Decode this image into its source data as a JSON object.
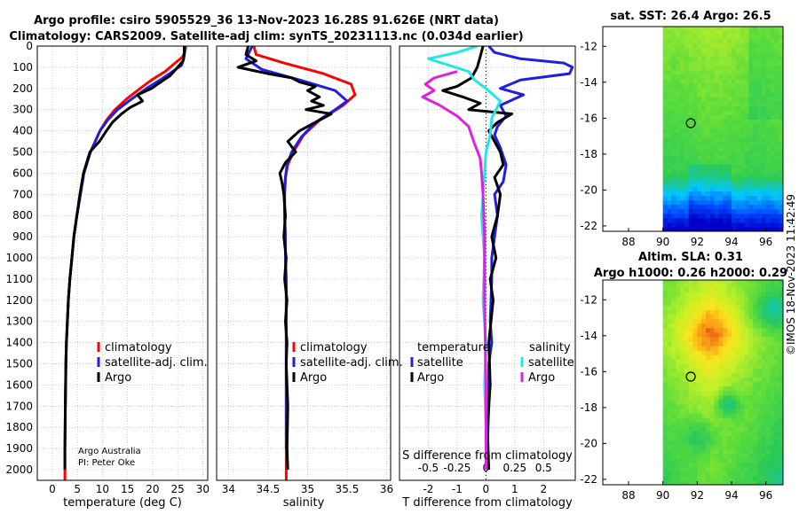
{
  "header": {
    "line1": "Argo profile: csiro 5905529_36 13-Nov-2023 16.28S 91.626E (NRT data)",
    "line2": "Climatology: CARS2009. Satellite-adj clim: synTS_20231113.nc (0.034d earlier)"
  },
  "colors": {
    "clim": "#ff0000",
    "sat": "#1f1fdd",
    "argo": "#000000",
    "sat_s": "#22e6e6",
    "argo_s": "#e020e0",
    "grid": "#b8b8b8"
  },
  "chart_data": [
    {
      "type": "line",
      "id": "temperature",
      "xlabel": "temperature (deg C)",
      "xlim": [
        -3,
        31
      ],
      "xticks": [
        0,
        5,
        10,
        15,
        20,
        25,
        30
      ],
      "xticklabels": [
        "0",
        "5",
        "10",
        "15",
        "20",
        "25",
        "30"
      ],
      "ylim": [
        2050,
        0
      ],
      "yticks": [
        0,
        100,
        200,
        300,
        400,
        500,
        600,
        700,
        800,
        900,
        1000,
        1100,
        1200,
        1300,
        1400,
        1500,
        1600,
        1700,
        1800,
        1900,
        2000
      ],
      "legend": [
        "climatology",
        "satellite-adj. clim.",
        "Argo"
      ],
      "annotation": [
        "Argo Australia",
        "PI: Peter Oke"
      ],
      "series": [
        {
          "name": "climatology",
          "color": "clim",
          "x": [
            26.6,
            26.5,
            26.0,
            24.5,
            22.5,
            19.8,
            17.5,
            14.8,
            12.5,
            10.8,
            9.5,
            7.6,
            6.3,
            5.6,
            4.9,
            4.3,
            3.9,
            3.5,
            3.2,
            3.0,
            2.8,
            2.7,
            2.6,
            2.5,
            2.5
          ],
          "y": [
            0,
            20,
            50,
            80,
            120,
            160,
            200,
            250,
            300,
            350,
            400,
            500,
            600,
            700,
            800,
            900,
            1000,
            1100,
            1200,
            1300,
            1400,
            1500,
            1700,
            1900,
            2050
          ]
        },
        {
          "name": "satellite-adj. clim.",
          "color": "sat",
          "x": [
            26.4,
            26.4,
            26.2,
            25.8,
            24.0,
            21.5,
            18.8,
            15.8,
            13.0,
            11.0,
            9.5,
            7.6,
            6.3,
            5.6,
            4.9,
            4.3,
            3.9,
            3.5,
            3.2,
            3.0,
            2.8,
            2.7,
            2.6
          ],
          "y": [
            0,
            30,
            60,
            90,
            120,
            160,
            200,
            250,
            300,
            350,
            400,
            500,
            600,
            700,
            800,
            900,
            1000,
            1100,
            1200,
            1300,
            1400,
            1500,
            1700
          ]
        },
        {
          "name": "Argo",
          "color": "argo",
          "x": [
            26.3,
            26.3,
            26.1,
            25.0,
            23.5,
            21.0,
            19.8,
            17.0,
            18.0,
            15.5,
            13.8,
            12.0,
            10.8,
            9.4,
            7.5,
            6.2,
            5.5,
            4.9,
            4.3,
            3.9,
            3.5,
            3.2,
            3.0,
            2.8,
            2.7,
            2.6,
            2.5,
            2.5
          ],
          "y": [
            0,
            40,
            70,
            100,
            140,
            180,
            200,
            230,
            260,
            290,
            320,
            360,
            400,
            450,
            500,
            600,
            700,
            800,
            900,
            1000,
            1100,
            1200,
            1300,
            1400,
            1500,
            1700,
            1900,
            2000
          ]
        }
      ]
    },
    {
      "type": "line",
      "id": "salinity",
      "xlabel": "salinity",
      "xlim": [
        33.85,
        36.05
      ],
      "xticks": [
        34,
        34.5,
        35,
        35.5,
        36
      ],
      "xticklabels": [
        "34",
        "34.5",
        "35",
        "35.5",
        "36"
      ],
      "ylim": [
        2050,
        0
      ],
      "legend": [
        "climatology",
        "satellite-adj. clim.",
        "Argo"
      ],
      "series": [
        {
          "name": "climatology",
          "color": "clim",
          "x": [
            34.32,
            34.35,
            34.7,
            35.2,
            35.55,
            35.6,
            35.45,
            35.15,
            34.95,
            34.82,
            34.75,
            34.72,
            34.71,
            34.71,
            34.72,
            34.72,
            34.73,
            34.73,
            34.73,
            34.73,
            34.73,
            34.73
          ],
          "y": [
            0,
            40,
            80,
            130,
            180,
            230,
            280,
            350,
            420,
            500,
            560,
            620,
            700,
            800,
            900,
            1000,
            1100,
            1300,
            1500,
            1700,
            1900,
            2050
          ]
        },
        {
          "name": "satellite-adj. clim.",
          "color": "sat",
          "x": [
            34.3,
            34.22,
            34.42,
            34.9,
            35.35,
            35.5,
            35.35,
            35.1,
            34.92,
            34.8,
            34.74,
            34.72,
            34.71,
            34.71,
            34.72,
            34.72,
            34.73,
            34.73,
            34.73,
            34.73,
            34.73
          ],
          "y": [
            0,
            60,
            110,
            160,
            210,
            260,
            300,
            360,
            430,
            500,
            560,
            620,
            700,
            800,
            900,
            1000,
            1100,
            1300,
            1500,
            1700,
            1900
          ]
        },
        {
          "name": "Argo",
          "color": "argo",
          "x": [
            34.25,
            34.22,
            34.35,
            34.12,
            34.5,
            34.8,
            34.9,
            35.1,
            35.0,
            35.15,
            35.05,
            35.2,
            34.98,
            35.3,
            35.1,
            34.9,
            34.75,
            34.85,
            34.72,
            34.65,
            34.68,
            34.7,
            34.72,
            34.7,
            34.73,
            34.71,
            34.74,
            34.72,
            34.74,
            34.73,
            34.75,
            34.74,
            34.75
          ],
          "y": [
            0,
            40,
            70,
            100,
            130,
            150,
            170,
            190,
            210,
            240,
            260,
            280,
            300,
            320,
            360,
            400,
            450,
            500,
            550,
            600,
            650,
            700,
            800,
            900,
            1000,
            1100,
            1200,
            1300,
            1400,
            1500,
            1700,
            1900,
            2000
          ]
        }
      ]
    },
    {
      "type": "line",
      "id": "difference",
      "xlabel": "T difference from climatology",
      "xlabel_top": "S difference from climatology",
      "xlim": [
        -3,
        3.1
      ],
      "xticks": [
        -2,
        -1,
        0,
        1,
        2
      ],
      "xticklabels": [
        "-2",
        "-1",
        "0",
        "1",
        "2"
      ],
      "s_ticklabels": [
        "-0.5",
        "-0.25",
        "0",
        "0.25",
        "0.5"
      ],
      "ylim": [
        2050,
        0
      ],
      "legend_left_title": "temperature",
      "legend_right_title": "salinity",
      "legend_left": [
        "satellite",
        "Argo"
      ],
      "legend_right": [
        "satellite",
        "Argo"
      ],
      "series": [
        {
          "name": "T satellite",
          "color": "sat",
          "x": [
            0.1,
            0.3,
            1.2,
            2.7,
            3.0,
            2.9,
            1.2,
            0.5,
            1.3,
            0.5,
            0.7,
            0.4,
            0.3,
            0.5,
            0.7,
            0.6,
            0.3,
            0.4,
            0.3,
            0.2,
            0.2,
            0.15,
            0.2,
            0.1,
            0.1,
            0.05,
            0.05
          ],
          "y": [
            0,
            30,
            60,
            80,
            100,
            130,
            160,
            200,
            230,
            280,
            330,
            380,
            420,
            480,
            560,
            640,
            700,
            800,
            900,
            1000,
            1100,
            1300,
            1400,
            1500,
            1700,
            1900,
            2000
          ]
        },
        {
          "name": "T Argo",
          "color": "argo",
          "x": [
            -0.1,
            -0.2,
            -0.3,
            -0.5,
            -1.0,
            -1.5,
            -0.8,
            -0.2,
            -0.6,
            0.9,
            0.4,
            0.1,
            0.3,
            0.5,
            0.6,
            0.3,
            0.5,
            0.4,
            0.2,
            0.35,
            0.15,
            0.25,
            0.1,
            0.15,
            0.05,
            0.1
          ],
          "y": [
            0,
            50,
            100,
            150,
            190,
            210,
            240,
            270,
            300,
            320,
            360,
            400,
            450,
            500,
            560,
            620,
            700,
            800,
            900,
            1000,
            1100,
            1200,
            1400,
            1600,
            1800,
            2000
          ]
        },
        {
          "name": "S satellite",
          "color": "sat_s",
          "x": [
            -0.3,
            -1.0,
            -2.0,
            -1.3,
            -0.6,
            -0.4,
            0.0,
            0.5,
            0.2,
            0.15,
            0.0,
            -0.05,
            -0.1,
            -0.15,
            -0.05,
            -0.1,
            0.0,
            -0.05,
            0.0,
            0.0
          ],
          "y": [
            0,
            30,
            60,
            90,
            120,
            160,
            200,
            260,
            340,
            420,
            500,
            600,
            700,
            800,
            1000,
            1200,
            1400,
            1600,
            1800,
            2000
          ]
        },
        {
          "name": "S Argo",
          "color": "argo_s",
          "x": [
            -1.0,
            -1.8,
            -2.1,
            -1.8,
            -2.2,
            -1.6,
            -1.0,
            -0.6,
            -0.4,
            -0.2,
            -0.15,
            -0.1,
            -0.05,
            -0.05,
            0.0,
            0.0
          ],
          "y": [
            120,
            150,
            180,
            210,
            240,
            280,
            330,
            380,
            460,
            530,
            600,
            700,
            900,
            1200,
            1600,
            2000
          ]
        }
      ]
    },
    {
      "type": "heatmap",
      "id": "sst-map",
      "title": "sat. SST: 26.4 Argo: 26.5",
      "xlim": [
        86.5,
        97
      ],
      "ylim": [
        -22.3,
        -10.9
      ],
      "xticks": [
        88,
        90,
        92,
        94,
        96
      ],
      "yticks": [
        -12,
        -14,
        -16,
        -18,
        -20,
        -22
      ],
      "data_xmin": 90,
      "argo_position": {
        "lon": 91.626,
        "lat": -16.28
      }
    },
    {
      "type": "heatmap",
      "id": "sla-map",
      "title_line1": "Altim. SLA: 0.31",
      "title_line2": "Argo h1000: 0.26 h2000: 0.29",
      "xlim": [
        86.5,
        97
      ],
      "ylim": [
        -22.3,
        -10.9
      ],
      "xticks": [
        88,
        90,
        92,
        94,
        96
      ],
      "yticks": [
        -12,
        -14,
        -16,
        -18,
        -20,
        -22
      ],
      "data_xmin": 90,
      "argo_position": {
        "lon": 91.626,
        "lat": -16.28
      }
    }
  ],
  "stamp": "©IMOS 18-Nov-2023 11:42:49"
}
